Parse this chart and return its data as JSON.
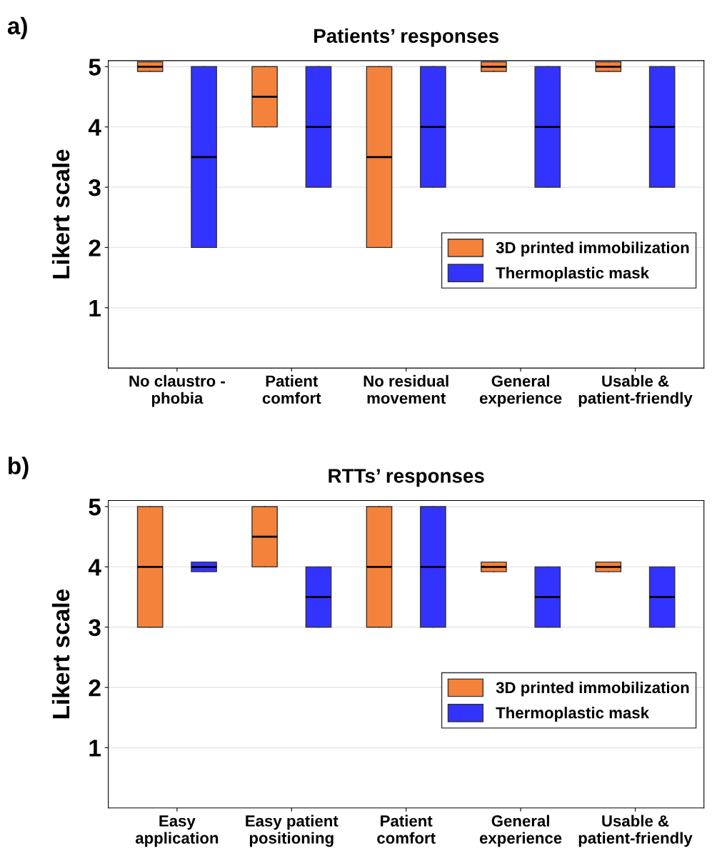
{
  "chart_data": [
    {
      "type": "box",
      "title": "Patients’ responses",
      "ylabel": "Likert scale",
      "annotations": [
        "a)"
      ],
      "categories": [
        "No claustro -\nphobia",
        "Patient\ncomfort",
        "No residual\nmovement",
        "General\nexperience",
        "Usable &\npatient-friendly"
      ],
      "ylim": [
        0,
        5.1
      ],
      "yticks": [
        1,
        2,
        3,
        4,
        5
      ],
      "grid": "y",
      "legend": "right",
      "series": [
        {
          "name": "3D printed immobilization",
          "color": "#f5823a",
          "boxes": [
            {
              "low": 4.92,
              "q1": 4.92,
              "median": 5,
              "q3": 5.08,
              "high": 5.08
            },
            {
              "low": 4,
              "q1": 4,
              "median": 4.5,
              "q3": 5,
              "high": 5
            },
            {
              "low": 2,
              "q1": 2,
              "median": 3.5,
              "q3": 5,
              "high": 5
            },
            {
              "low": 4.92,
              "q1": 4.92,
              "median": 5,
              "q3": 5.08,
              "high": 5.08
            },
            {
              "low": 4.92,
              "q1": 4.92,
              "median": 5,
              "q3": 5.08,
              "high": 5.08
            }
          ]
        },
        {
          "name": "Thermoplastic mask",
          "color": "#3333ff",
          "boxes": [
            {
              "low": 2,
              "q1": 2,
              "median": 3.5,
              "q3": 5,
              "high": 5
            },
            {
              "low": 3,
              "q1": 3,
              "median": 4,
              "q3": 5,
              "high": 5
            },
            {
              "low": 3,
              "q1": 3,
              "median": 4,
              "q3": 5,
              "high": 5
            },
            {
              "low": 3,
              "q1": 3,
              "median": 4,
              "q3": 5,
              "high": 5
            },
            {
              "low": 3,
              "q1": 3,
              "median": 4,
              "q3": 5,
              "high": 5
            }
          ]
        }
      ]
    },
    {
      "type": "box",
      "title": "RTTs’ responses",
      "ylabel": "Likert scale",
      "annotations": [
        "b)"
      ],
      "categories": [
        "Easy\napplication",
        "Easy patient\npositioning",
        "Patient\ncomfort",
        "General\nexperience",
        "Usable &\npatient-friendly"
      ],
      "ylim": [
        0,
        5.1
      ],
      "yticks": [
        1,
        2,
        3,
        4,
        5
      ],
      "grid": "y",
      "legend": "right",
      "series": [
        {
          "name": "3D printed immobilization",
          "color": "#f5823a",
          "boxes": [
            {
              "low": 3,
              "q1": 3,
              "median": 4,
              "q3": 5,
              "high": 5
            },
            {
              "low": 4,
              "q1": 4,
              "median": 4.5,
              "q3": 5,
              "high": 5
            },
            {
              "low": 3,
              "q1": 3,
              "median": 4,
              "q3": 5,
              "high": 5
            },
            {
              "low": 3.92,
              "q1": 3.92,
              "median": 4,
              "q3": 4.08,
              "high": 4.08
            },
            {
              "low": 3.92,
              "q1": 3.92,
              "median": 4,
              "q3": 4.08,
              "high": 4.08
            }
          ]
        },
        {
          "name": "Thermoplastic mask",
          "color": "#3333ff",
          "boxes": [
            {
              "low": 3.92,
              "q1": 3.92,
              "median": 4,
              "q3": 4.08,
              "high": 4.08
            },
            {
              "low": 3,
              "q1": 3,
              "median": 3.5,
              "q3": 4,
              "high": 4
            },
            {
              "low": 3,
              "q1": 3,
              "median": 4,
              "q3": 5,
              "high": 5
            },
            {
              "low": 3,
              "q1": 3,
              "median": 3.5,
              "q3": 4,
              "high": 4
            },
            {
              "low": 3,
              "q1": 3,
              "median": 3.5,
              "q3": 4,
              "high": 4
            }
          ]
        }
      ]
    }
  ]
}
